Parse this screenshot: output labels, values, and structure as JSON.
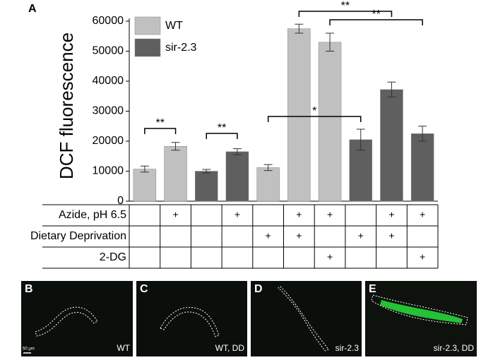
{
  "chart_data": {
    "type": "bar",
    "panel_label": "A",
    "y_label": "DCF fluorescence",
    "categories": [
      null,
      null,
      null,
      null,
      null,
      null,
      null,
      null,
      null,
      null
    ],
    "series": [
      {
        "name": "WT",
        "color": "#c0c0c0",
        "values": [
          10700,
          18300,
          null,
          null,
          11200,
          57500,
          53000,
          null,
          null,
          null
        ],
        "errors": [
          1000,
          1300,
          null,
          null,
          1000,
          1500,
          3000,
          null,
          null,
          null
        ]
      },
      {
        "name": "sir-2.3",
        "color": "#5f5f5f",
        "values": [
          null,
          null,
          10000,
          16500,
          null,
          null,
          null,
          20500,
          37200,
          22500
        ],
        "errors": [
          null,
          null,
          600,
          1000,
          null,
          null,
          null,
          3500,
          2500,
          2500
        ]
      }
    ],
    "ylim": [
      0,
      60000
    ],
    "yticks": [
      0,
      10000,
      20000,
      30000,
      40000,
      50000,
      60000
    ],
    "annotations": [
      {
        "text": "**",
        "from": 0,
        "to": 1
      },
      {
        "text": "**",
        "from": 2,
        "to": 3
      },
      {
        "text": "*",
        "from": 4,
        "to": 7
      },
      {
        "text": "**",
        "from": 5,
        "to": 8
      },
      {
        "text": "**",
        "from": 6,
        "to": 9
      }
    ],
    "table": {
      "rows": [
        {
          "label": "Azide, pH 6.5",
          "cells": [
            null,
            "+",
            null,
            "+",
            null,
            "+",
            "+",
            null,
            "+",
            "+"
          ]
        },
        {
          "label": "Dietary Deprivation",
          "cells": [
            null,
            null,
            null,
            null,
            "+",
            "+",
            null,
            "+",
            "+",
            null
          ]
        },
        {
          "label": "2-DG",
          "cells": [
            null,
            null,
            null,
            null,
            null,
            null,
            "+",
            null,
            null,
            "+"
          ]
        }
      ]
    }
  },
  "panels": [
    {
      "letter": "B",
      "caption": "WT",
      "scale": "50 μm"
    },
    {
      "letter": "C",
      "caption": "WT, DD"
    },
    {
      "letter": "D",
      "caption": "sir-2.3"
    },
    {
      "letter": "E",
      "caption": "sir-2.3, DD"
    }
  ]
}
